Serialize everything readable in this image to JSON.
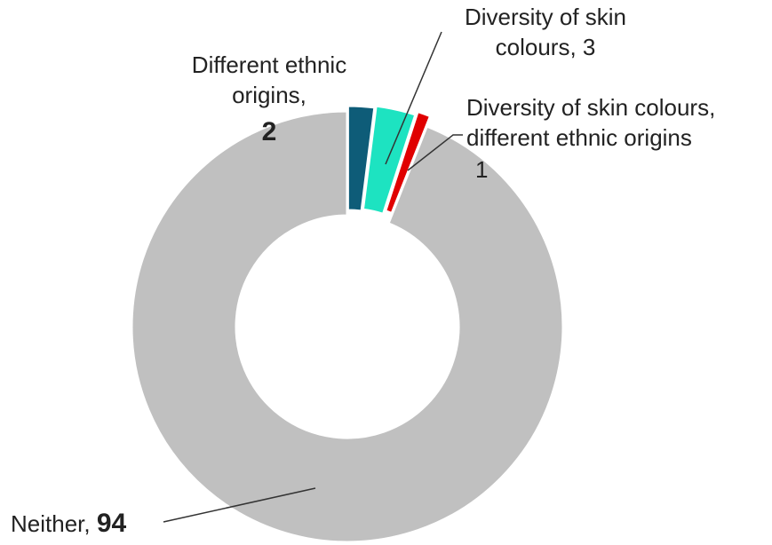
{
  "chart_data": {
    "type": "pie",
    "donut": true,
    "start_angle_deg": 0,
    "direction": "clockwise",
    "exploded_slices": true,
    "slices": [
      {
        "name": "Different ethnic origins",
        "value": 2,
        "color": "#0e5c78",
        "label_lines": [
          "Different ethnic",
          "origins,"
        ],
        "value_label": "2",
        "value_bold": true
      },
      {
        "name": "Diversity of skin colours",
        "value": 3,
        "color": "#1de3c1",
        "label_lines": [
          "Diversity of skin",
          "colours, 3"
        ],
        "value_label": "",
        "value_bold": false
      },
      {
        "name": "Diversity of skin colours, different ethnic origins",
        "value": 1,
        "color": "#e00000",
        "label_lines": [
          "Diversity of skin colours,",
          "different ethnic origins"
        ],
        "value_label": "1",
        "value_bold": false
      },
      {
        "name": "Neither",
        "value": 94,
        "color": "#c0c0c0",
        "label_lines": [
          "Neither, "
        ],
        "value_label": "94",
        "value_bold": true
      }
    ]
  }
}
